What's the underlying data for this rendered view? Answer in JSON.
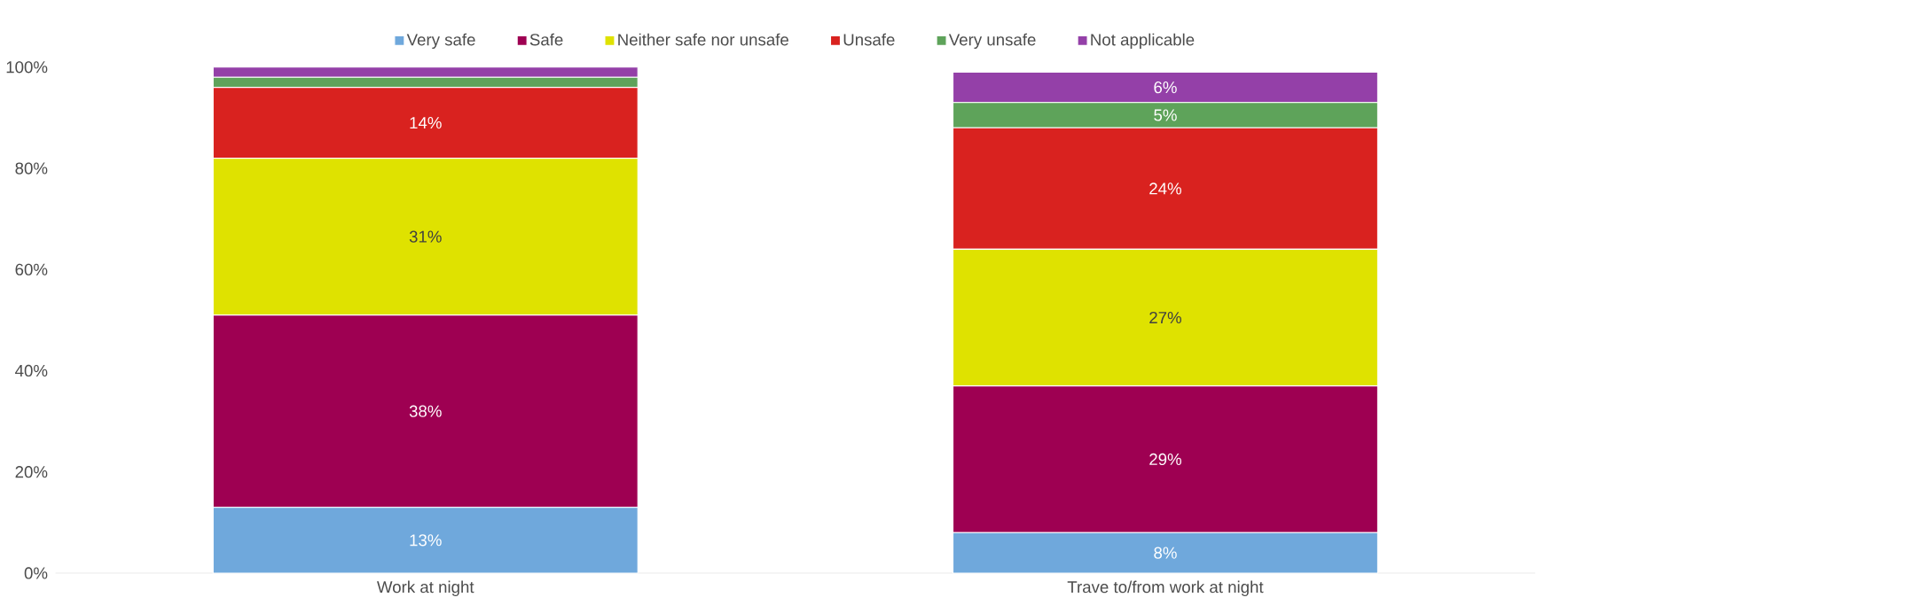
{
  "chart_data": {
    "type": "bar",
    "stacked": true,
    "legend": "top",
    "grid": false,
    "categories": [
      "Work at night",
      "Trave to/from work at night"
    ],
    "ylim": [
      0,
      100
    ],
    "yticks": [
      {
        "value": 0,
        "label": "0%"
      },
      {
        "value": 20,
        "label": "20%"
      },
      {
        "value": 40,
        "label": "40%"
      },
      {
        "value": 60,
        "label": "60%"
      },
      {
        "value": 80,
        "label": "80%"
      },
      {
        "value": 100,
        "label": "100%"
      }
    ],
    "series": [
      {
        "name": "Very safe",
        "color": "#6fa8dc",
        "values": [
          13,
          8
        ],
        "value_labels": [
          "13%",
          "8%"
        ]
      },
      {
        "name": "Safe",
        "color": "#9e0052",
        "values": [
          38,
          29
        ],
        "value_labels": [
          "38%",
          "29%"
        ]
      },
      {
        "name": "Neither safe nor unsafe",
        "color": "#dfe200",
        "values": [
          31,
          27
        ],
        "value_labels": [
          "31%",
          "27%"
        ]
      },
      {
        "name": "Unsafe",
        "color": "#d9221f",
        "values": [
          14,
          24
        ],
        "value_labels": [
          "14%",
          "24%"
        ]
      },
      {
        "name": "Very unsafe",
        "color": "#5ea35a",
        "values": [
          2,
          5
        ],
        "value_labels": [
          null,
          "5%"
        ]
      },
      {
        "name": "Not applicable",
        "color": "#9440a8",
        "values": [
          2,
          6
        ],
        "value_labels": [
          null,
          "6%"
        ]
      }
    ]
  }
}
